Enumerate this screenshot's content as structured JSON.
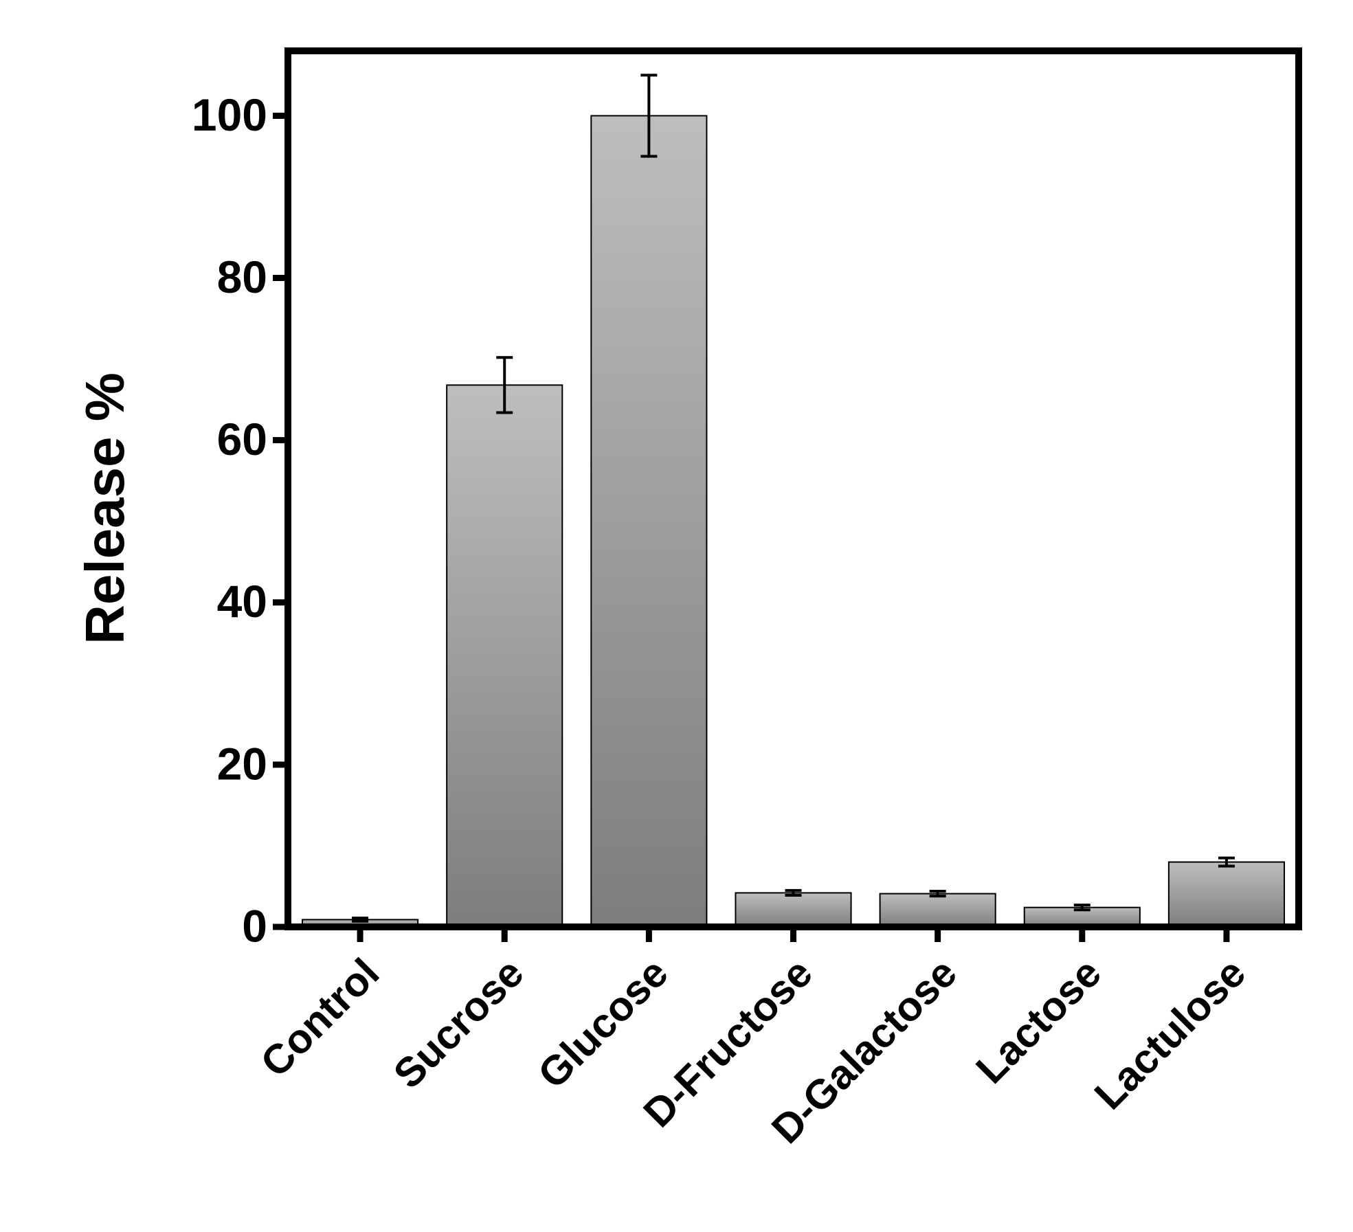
{
  "chart_data": {
    "type": "bar",
    "y_label": "Release %",
    "categories": [
      "Control",
      "Sucrose",
      "Glucose",
      "D-Fructose",
      "D-Galactose",
      "Lactose",
      "Lactulose"
    ],
    "values": [
      0.9,
      66.8,
      100,
      4.2,
      4.1,
      2.4,
      8.0
    ],
    "errors": [
      0.2,
      3.4,
      5.0,
      0.3,
      0.3,
      0.3,
      0.5
    ],
    "ylim": [
      0,
      108
    ],
    "yticks": [
      0,
      20,
      40,
      60,
      80,
      100
    ],
    "color_top": "#bebebe",
    "color_bottom": "#7d7d7d"
  }
}
